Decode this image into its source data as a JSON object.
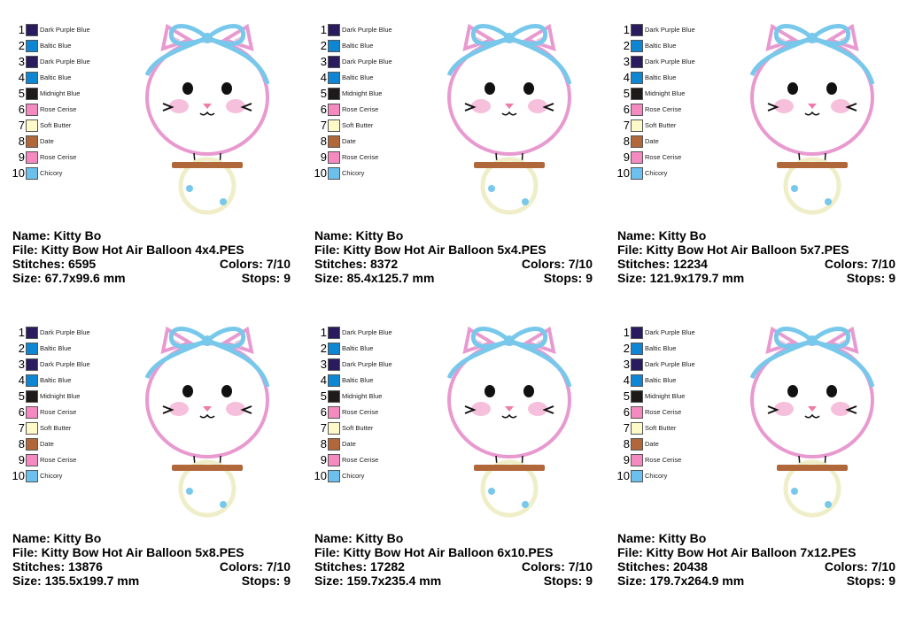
{
  "thread_colors": [
    {
      "num": "1",
      "name": "Dark Purple Blue",
      "color": "#2a1b5e"
    },
    {
      "num": "2",
      "name": "Baltic Blue",
      "color": "#0f86d4"
    },
    {
      "num": "3",
      "name": "Dark Purple Blue",
      "color": "#2a1b5e"
    },
    {
      "num": "4",
      "name": "Baltic Blue",
      "color": "#0f86d4"
    },
    {
      "num": "5",
      "name": "Midnight Blue",
      "color": "#1e1a1a"
    },
    {
      "num": "6",
      "name": "Rose Cerise",
      "color": "#f58ac0"
    },
    {
      "num": "7",
      "name": "Soft Butter",
      "color": "#fdf9c8"
    },
    {
      "num": "8",
      "name": "Date",
      "color": "#b0683a"
    },
    {
      "num": "9",
      "name": "Rose Cerise",
      "color": "#f58ac0"
    },
    {
      "num": "10",
      "name": "Chicory",
      "color": "#6cc0ee"
    }
  ],
  "art_colors": {
    "outline": "#e89ad0",
    "bow": "#78c8ec",
    "cheek": "#f6c0dc",
    "eyes": "#111111",
    "bar": "#b0683a",
    "basket": "#efeec8",
    "nose": "#f07aa8"
  },
  "designs": [
    {
      "name": "Name: Kitty Bo",
      "file": "File: Kitty Bow Hot Air Balloon 4x4.PES",
      "stitches": "Stitches: 6595",
      "colors": "Colors: 7/10",
      "size": "Size: 67.7x99.6 mm",
      "stops": "Stops: 9"
    },
    {
      "name": "Name: Kitty Bo",
      "file": "File: Kitty Bow Hot Air Balloon 5x4.PES",
      "stitches": "Stitches: 8372",
      "colors": "Colors: 7/10",
      "size": "Size: 85.4x125.7 mm",
      "stops": "Stops: 9"
    },
    {
      "name": "Name: Kitty Bo",
      "file": "File: Kitty Bow Hot Air Balloon 5x7.PES",
      "stitches": "Stitches: 12234",
      "colors": "Colors: 7/10",
      "size": "Size: 121.9x179.7 mm",
      "stops": "Stops: 9"
    },
    {
      "name": "Name: Kitty Bo",
      "file": "File: Kitty Bow Hot Air Balloon 5x8.PES",
      "stitches": "Stitches: 13876",
      "colors": "Colors: 7/10",
      "size": "Size: 135.5x199.7 mm",
      "stops": "Stops: 9"
    },
    {
      "name": "Name: Kitty Bo",
      "file": "File: Kitty Bow Hot Air Balloon 6x10.PES",
      "stitches": "Stitches: 17282",
      "colors": "Colors: 7/10",
      "size": "Size: 159.7x235.4 mm",
      "stops": "Stops: 9"
    },
    {
      "name": "Name: Kitty Bo",
      "file": "File: Kitty Bow Hot Air Balloon 7x12.PES",
      "stitches": "Stitches: 20438",
      "colors": "Colors: 7/10",
      "size": "Size: 179.7x264.9 mm",
      "stops": "Stops: 9"
    }
  ]
}
